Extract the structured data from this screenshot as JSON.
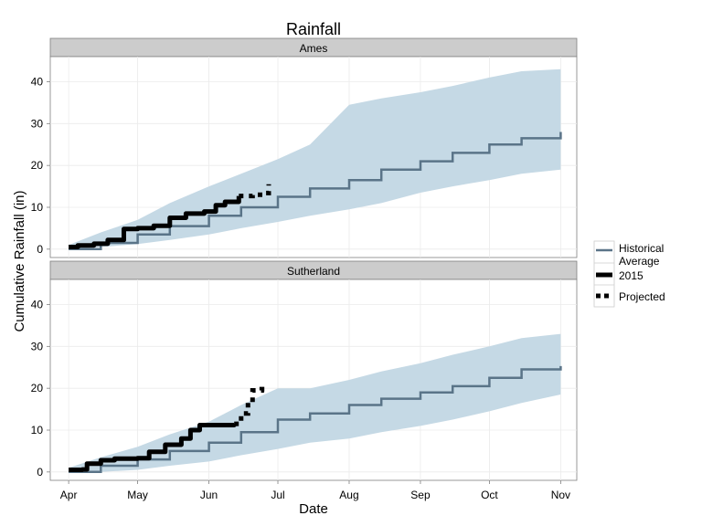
{
  "chart_data": {
    "type": "line",
    "title": "Rainfall",
    "xlabel": "Date",
    "ylabel": "Cumulative Rainfall (in)",
    "x_ticks": [
      "Apr",
      "May",
      "Jun",
      "Jul",
      "Aug",
      "Sep",
      "Oct",
      "Nov"
    ],
    "x_tick_dates": [
      "2015-04-01",
      "2015-05-01",
      "2015-06-01",
      "2015-07-01",
      "2015-08-01",
      "2015-09-01",
      "2015-10-01",
      "2015-11-01"
    ],
    "y_ticks": [
      0,
      10,
      20,
      30,
      40
    ],
    "ylim": [
      -2,
      46
    ],
    "xlim": [
      "2015-03-24",
      "2015-11-08"
    ],
    "grid": true,
    "legend": {
      "placement": "right",
      "entries": [
        {
          "label": "Historical Average",
          "style": "historical"
        },
        {
          "label": "2015",
          "style": "observed"
        },
        {
          "label": "Projected",
          "style": "projected"
        }
      ]
    },
    "colors": {
      "band": "#c5d9e5",
      "historical": "#5a7488",
      "observed": "#000000",
      "projected": "#000000",
      "strip": "#cccccc"
    },
    "panels": [
      {
        "name": "Ames",
        "band": [
          {
            "date": "2015-04-01",
            "low": 0.0,
            "high": 1.0
          },
          {
            "date": "2015-04-15",
            "low": 0.5,
            "high": 4.0
          },
          {
            "date": "2015-05-01",
            "low": 1.2,
            "high": 7.0
          },
          {
            "date": "2015-05-15",
            "low": 2.2,
            "high": 11.0
          },
          {
            "date": "2015-06-01",
            "low": 3.5,
            "high": 15.0
          },
          {
            "date": "2015-06-15",
            "low": 5.0,
            "high": 18.0
          },
          {
            "date": "2015-07-01",
            "low": 6.5,
            "high": 21.5
          },
          {
            "date": "2015-07-15",
            "low": 8.0,
            "high": 25.0
          },
          {
            "date": "2015-08-01",
            "low": 9.5,
            "high": 34.5
          },
          {
            "date": "2015-08-15",
            "low": 11.0,
            "high": 36.0
          },
          {
            "date": "2015-09-01",
            "low": 13.5,
            "high": 37.5
          },
          {
            "date": "2015-09-15",
            "low": 15.0,
            "high": 39.0
          },
          {
            "date": "2015-10-01",
            "low": 16.5,
            "high": 41.0
          },
          {
            "date": "2015-10-15",
            "low": 18.0,
            "high": 42.5
          },
          {
            "date": "2015-11-01",
            "low": 19.0,
            "high": 43.0
          }
        ],
        "historical": [
          {
            "date": "2015-04-01",
            "value": 0.0
          },
          {
            "date": "2015-04-15",
            "value": 1.5
          },
          {
            "date": "2015-05-01",
            "value": 3.5
          },
          {
            "date": "2015-05-15",
            "value": 5.5
          },
          {
            "date": "2015-06-01",
            "value": 8.0
          },
          {
            "date": "2015-06-15",
            "value": 10.0
          },
          {
            "date": "2015-07-01",
            "value": 12.5
          },
          {
            "date": "2015-07-15",
            "value": 14.5
          },
          {
            "date": "2015-08-01",
            "value": 16.5
          },
          {
            "date": "2015-08-15",
            "value": 19.0
          },
          {
            "date": "2015-09-01",
            "value": 21.0
          },
          {
            "date": "2015-09-15",
            "value": 23.0
          },
          {
            "date": "2015-10-01",
            "value": 25.0
          },
          {
            "date": "2015-10-15",
            "value": 26.5
          },
          {
            "date": "2015-11-01",
            "value": 28.0
          }
        ],
        "observed": [
          {
            "date": "2015-04-01",
            "value": 0.5
          },
          {
            "date": "2015-04-05",
            "value": 0.9
          },
          {
            "date": "2015-04-12",
            "value": 1.3
          },
          {
            "date": "2015-04-18",
            "value": 2.2
          },
          {
            "date": "2015-04-25",
            "value": 4.8
          },
          {
            "date": "2015-05-01",
            "value": 5.0
          },
          {
            "date": "2015-05-08",
            "value": 5.6
          },
          {
            "date": "2015-05-15",
            "value": 7.5
          },
          {
            "date": "2015-05-22",
            "value": 8.5
          },
          {
            "date": "2015-05-30",
            "value": 9.0
          },
          {
            "date": "2015-06-04",
            "value": 10.5
          },
          {
            "date": "2015-06-08",
            "value": 11.3
          },
          {
            "date": "2015-06-14",
            "value": 12.7
          }
        ],
        "projected": [
          {
            "date": "2015-06-14",
            "value": 12.7
          },
          {
            "date": "2015-06-20",
            "value": 13.0
          },
          {
            "date": "2015-06-25",
            "value": 13.4
          },
          {
            "date": "2015-06-27",
            "value": 15.5
          }
        ]
      },
      {
        "name": "Sutherland",
        "band": [
          {
            "date": "2015-04-01",
            "low": 0.0,
            "high": 1.0
          },
          {
            "date": "2015-04-15",
            "low": 0.0,
            "high": 3.5
          },
          {
            "date": "2015-05-01",
            "low": 0.5,
            "high": 6.0
          },
          {
            "date": "2015-05-15",
            "low": 1.5,
            "high": 9.0
          },
          {
            "date": "2015-06-01",
            "low": 2.5,
            "high": 12.0
          },
          {
            "date": "2015-06-15",
            "low": 4.0,
            "high": 16.0
          },
          {
            "date": "2015-07-01",
            "low": 5.5,
            "high": 20.0
          },
          {
            "date": "2015-07-15",
            "low": 7.0,
            "high": 20.0
          },
          {
            "date": "2015-08-01",
            "low": 8.0,
            "high": 22.0
          },
          {
            "date": "2015-08-15",
            "low": 9.5,
            "high": 24.0
          },
          {
            "date": "2015-09-01",
            "low": 11.0,
            "high": 26.0
          },
          {
            "date": "2015-09-15",
            "low": 12.5,
            "high": 28.0
          },
          {
            "date": "2015-10-01",
            "low": 14.5,
            "high": 30.0
          },
          {
            "date": "2015-10-15",
            "low": 16.5,
            "high": 32.0
          },
          {
            "date": "2015-11-01",
            "low": 18.5,
            "high": 33.0
          }
        ],
        "historical": [
          {
            "date": "2015-04-01",
            "value": 0.0
          },
          {
            "date": "2015-04-15",
            "value": 1.5
          },
          {
            "date": "2015-05-01",
            "value": 3.0
          },
          {
            "date": "2015-05-15",
            "value": 5.0
          },
          {
            "date": "2015-06-01",
            "value": 7.0
          },
          {
            "date": "2015-06-15",
            "value": 9.5
          },
          {
            "date": "2015-07-01",
            "value": 12.5
          },
          {
            "date": "2015-07-15",
            "value": 14.0
          },
          {
            "date": "2015-08-01",
            "value": 16.0
          },
          {
            "date": "2015-08-15",
            "value": 17.5
          },
          {
            "date": "2015-09-01",
            "value": 19.0
          },
          {
            "date": "2015-09-15",
            "value": 20.5
          },
          {
            "date": "2015-10-01",
            "value": 22.5
          },
          {
            "date": "2015-10-15",
            "value": 24.5
          },
          {
            "date": "2015-11-01",
            "value": 25.3
          }
        ],
        "observed": [
          {
            "date": "2015-04-01",
            "value": 0.5
          },
          {
            "date": "2015-04-07",
            "value": 0.6
          },
          {
            "date": "2015-04-09",
            "value": 2.0
          },
          {
            "date": "2015-04-15",
            "value": 2.8
          },
          {
            "date": "2015-04-21",
            "value": 3.2
          },
          {
            "date": "2015-05-01",
            "value": 3.3
          },
          {
            "date": "2015-05-06",
            "value": 4.8
          },
          {
            "date": "2015-05-13",
            "value": 6.5
          },
          {
            "date": "2015-05-20",
            "value": 8.0
          },
          {
            "date": "2015-05-24",
            "value": 10.0
          },
          {
            "date": "2015-05-28",
            "value": 11.2
          },
          {
            "date": "2015-06-12",
            "value": 11.5
          }
        ],
        "projected": [
          {
            "date": "2015-06-12",
            "value": 11.5
          },
          {
            "date": "2015-06-15",
            "value": 14.0
          },
          {
            "date": "2015-06-18",
            "value": 16.5
          },
          {
            "date": "2015-06-20",
            "value": 19.5
          },
          {
            "date": "2015-06-24",
            "value": 19.8
          },
          {
            "date": "2015-06-26",
            "value": 19.8
          }
        ]
      }
    ]
  }
}
